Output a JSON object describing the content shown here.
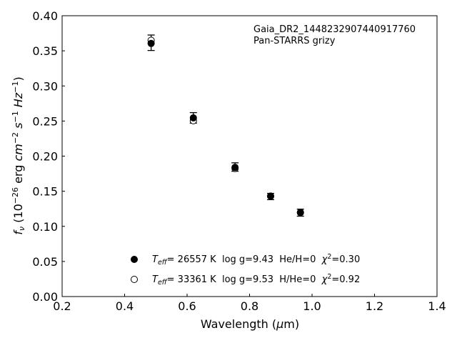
{
  "chart_data": {
    "type": "scatter",
    "xlabel": {
      "text": "Wavelength (",
      "mu": "μ",
      "rest": "m)"
    },
    "ylabel": {
      "f": "f",
      "nu": "ν",
      "p1": " (10",
      "exp1": "−26",
      "p2": " erg ",
      "cm": "cm",
      "exp2": "−2",
      "s": "s",
      "exp3": "−1",
      "hz": "Hz",
      "exp4": "−1",
      "p3": ")"
    },
    "xlim": [
      0.2,
      1.4
    ],
    "ylim": [
      0.0,
      0.4
    ],
    "x_ticks": [
      "0.2",
      "0.4",
      "0.6",
      "0.8",
      "1.0",
      "1.2",
      "1.4"
    ],
    "y_ticks": [
      "0.00",
      "0.05",
      "0.10",
      "0.15",
      "0.20",
      "0.25",
      "0.30",
      "0.35",
      "0.40"
    ],
    "annotation": [
      "Gaia_DR2_1448232907440917760",
      "Pan-STARRS grizy"
    ],
    "observed": {
      "x": [
        0.4849,
        0.6201,
        0.7535,
        0.8674,
        0.9628
      ],
      "y": [
        0.3615,
        0.2545,
        0.1845,
        0.1425,
        0.1195
      ],
      "yerr": [
        0.011,
        0.0075,
        0.006,
        0.0045,
        0.005
      ]
    },
    "series": [
      {
        "marker": "filled",
        "label": {
          "t": "T",
          "eff": "eff",
          "rest": "= 26557 K  log g=9.43  He/H=0  ",
          "chi": "χ",
          "sq": "2",
          "val": "=0.30"
        },
        "x": [
          0.4849,
          0.6201,
          0.7535,
          0.8674,
          0.9628
        ],
        "y": [
          0.3605,
          0.2545,
          0.184,
          0.143,
          0.1195
        ]
      },
      {
        "marker": "open",
        "label": {
          "t": "T",
          "eff": "eff",
          "rest": "= 33361 K  log g=9.53  H/He=0  ",
          "chi": "χ",
          "sq": "2",
          "val": "=0.92"
        },
        "x": [
          0.4849,
          0.6201,
          0.7535,
          0.8674,
          0.9628
        ],
        "y": [
          0.365,
          0.2505,
          0.1825,
          0.143,
          0.12
        ]
      }
    ],
    "legend_position": "lower-left",
    "grid": false
  }
}
